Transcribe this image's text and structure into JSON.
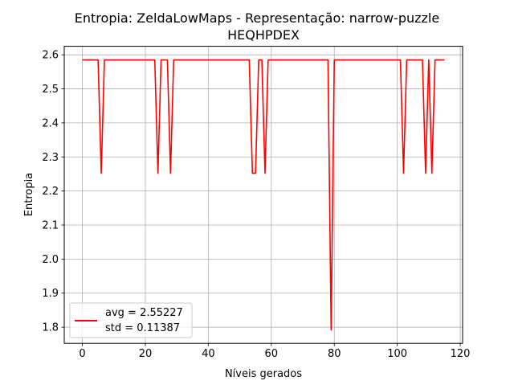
{
  "chart_data": {
    "type": "line",
    "title_line1": "Entropia: ZeldaLowMaps - Representação: narrow-puzzle",
    "title_line2": "HEQHPDEX",
    "xlabel": "Níveis gerados",
    "ylabel": "Entropia",
    "xlim": [
      -5.75,
      120.75
    ],
    "ylim": [
      1.7525,
      2.625
    ],
    "xticks": [
      0,
      20,
      40,
      60,
      80,
      100,
      120
    ],
    "yticks": [
      1.8,
      1.9,
      2.0,
      2.1,
      2.2,
      2.3,
      2.4,
      2.5,
      2.6
    ],
    "xtick_labels": [
      "0",
      "20",
      "40",
      "60",
      "80",
      "100",
      "120"
    ],
    "ytick_labels": [
      "1.8",
      "1.9",
      "2.0",
      "2.1",
      "2.2",
      "2.3",
      "2.4",
      "2.5",
      "2.6"
    ],
    "grid": true,
    "legend_position": "lower-left",
    "legend": [
      "avg = 2.55227",
      "std = 0.11387"
    ],
    "series": [
      {
        "color": "#ff0000",
        "x": [
          0,
          1,
          2,
          3,
          4,
          5,
          6,
          7,
          8,
          9,
          10,
          11,
          12,
          13,
          14,
          15,
          16,
          17,
          18,
          19,
          20,
          21,
          22,
          23,
          24,
          25,
          26,
          27,
          28,
          29,
          30,
          31,
          32,
          33,
          34,
          35,
          36,
          37,
          38,
          39,
          40,
          41,
          42,
          43,
          44,
          45,
          46,
          47,
          48,
          49,
          50,
          51,
          52,
          53,
          54,
          55,
          56,
          57,
          58,
          59,
          60,
          61,
          62,
          63,
          64,
          65,
          66,
          67,
          68,
          69,
          70,
          71,
          72,
          73,
          74,
          75,
          76,
          77,
          78,
          79,
          80,
          81,
          82,
          83,
          84,
          85,
          86,
          87,
          88,
          89,
          90,
          91,
          92,
          93,
          94,
          95,
          96,
          97,
          98,
          99,
          100,
          101,
          102,
          103,
          104,
          105,
          106,
          107,
          108,
          109,
          110,
          111,
          112,
          113,
          114,
          115
        ],
        "y": [
          2.585,
          2.585,
          2.585,
          2.585,
          2.585,
          2.585,
          2.252,
          2.585,
          2.585,
          2.585,
          2.585,
          2.585,
          2.585,
          2.585,
          2.585,
          2.585,
          2.585,
          2.585,
          2.585,
          2.585,
          2.585,
          2.585,
          2.585,
          2.585,
          2.252,
          2.585,
          2.585,
          2.585,
          2.252,
          2.585,
          2.585,
          2.585,
          2.585,
          2.585,
          2.585,
          2.585,
          2.585,
          2.585,
          2.585,
          2.585,
          2.585,
          2.585,
          2.585,
          2.585,
          2.585,
          2.585,
          2.585,
          2.585,
          2.585,
          2.585,
          2.585,
          2.585,
          2.585,
          2.585,
          2.252,
          2.252,
          2.585,
          2.585,
          2.252,
          2.585,
          2.585,
          2.585,
          2.585,
          2.585,
          2.585,
          2.585,
          2.585,
          2.585,
          2.585,
          2.585,
          2.585,
          2.585,
          2.585,
          2.585,
          2.585,
          2.585,
          2.585,
          2.585,
          2.585,
          1.792,
          2.585,
          2.585,
          2.585,
          2.585,
          2.585,
          2.585,
          2.585,
          2.585,
          2.585,
          2.585,
          2.585,
          2.585,
          2.585,
          2.585,
          2.585,
          2.585,
          2.585,
          2.585,
          2.585,
          2.585,
          2.585,
          2.585,
          2.252,
          2.585,
          2.585,
          2.585,
          2.585,
          2.585,
          2.585,
          2.252,
          2.585,
          2.252,
          2.585,
          2.585,
          2.585,
          2.585
        ]
      }
    ]
  }
}
